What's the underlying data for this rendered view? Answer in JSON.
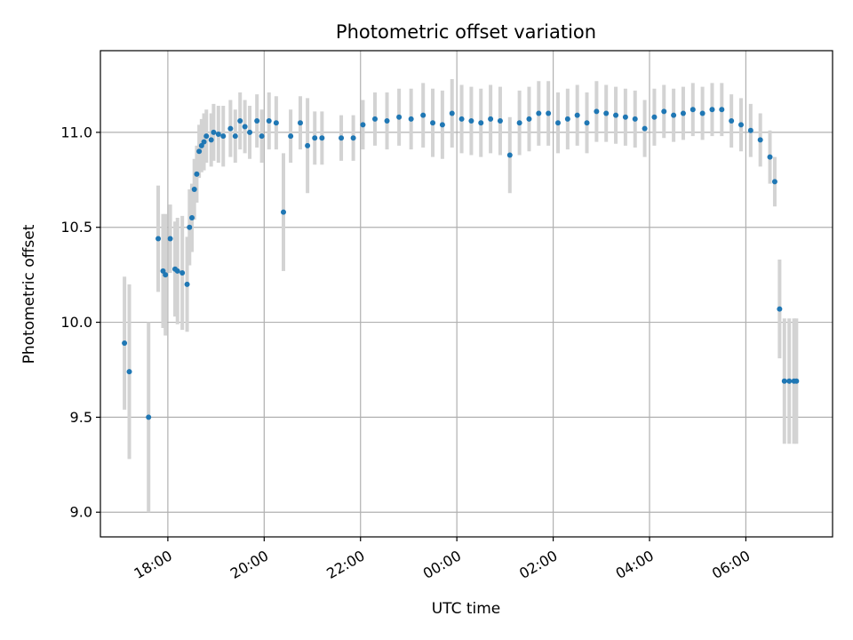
{
  "chart_data": {
    "type": "scatter",
    "title": "Photometric offset variation",
    "xlabel": "UTC time",
    "ylabel": "Photometric offset",
    "grid": true,
    "xlim_hours": [
      16.6,
      31.8
    ],
    "ylim": [
      8.87,
      11.43
    ],
    "x_ticks": [
      {
        "value": 18,
        "label": "18:00"
      },
      {
        "value": 20,
        "label": "20:00"
      },
      {
        "value": 22,
        "label": "22:00"
      },
      {
        "value": 24,
        "label": "00:00"
      },
      {
        "value": 26,
        "label": "02:00"
      },
      {
        "value": 28,
        "label": "04:00"
      },
      {
        "value": 30,
        "label": "06:00"
      }
    ],
    "y_ticks": [
      {
        "value": 9.0,
        "label": "9.0"
      },
      {
        "value": 9.5,
        "label": "9.5"
      },
      {
        "value": 10.0,
        "label": "10.0"
      },
      {
        "value": 10.5,
        "label": "10.5"
      },
      {
        "value": 11.0,
        "label": "11.0"
      }
    ],
    "marker_color": "#1f77b4",
    "errorbar_color": "#d3d3d3",
    "series": [
      {
        "name": "Photometric offset",
        "x": [
          17.1,
          17.2,
          17.6,
          17.8,
          17.9,
          17.95,
          18.05,
          18.15,
          18.2,
          18.3,
          18.4,
          18.45,
          18.5,
          18.55,
          18.6,
          18.65,
          18.7,
          18.75,
          18.8,
          18.9,
          18.95,
          19.05,
          19.15,
          19.3,
          19.4,
          19.5,
          19.6,
          19.7,
          19.85,
          19.95,
          20.1,
          20.25,
          20.4,
          20.55,
          20.75,
          20.9,
          21.05,
          21.2,
          21.6,
          21.85,
          22.05,
          22.3,
          22.55,
          22.8,
          23.05,
          23.3,
          23.5,
          23.7,
          23.9,
          24.1,
          24.3,
          24.5,
          24.7,
          24.9,
          25.1,
          25.3,
          25.5,
          25.7,
          25.9,
          26.1,
          26.3,
          26.5,
          26.7,
          26.9,
          27.1,
          27.3,
          27.5,
          27.7,
          27.9,
          28.1,
          28.3,
          28.5,
          28.7,
          28.9,
          29.1,
          29.3,
          29.5,
          29.7,
          29.9,
          30.1,
          30.3,
          30.5,
          30.6,
          30.7,
          30.8,
          30.9,
          31.0,
          31.05
        ],
        "y": [
          9.89,
          9.74,
          9.5,
          10.44,
          10.27,
          10.25,
          10.44,
          10.28,
          10.27,
          10.26,
          10.2,
          10.5,
          10.55,
          10.7,
          10.78,
          10.9,
          10.93,
          10.95,
          10.98,
          10.96,
          11.0,
          10.99,
          10.98,
          11.02,
          10.98,
          11.06,
          11.03,
          11.0,
          11.06,
          10.98,
          11.06,
          11.05,
          10.58,
          10.98,
          11.05,
          10.93,
          10.97,
          10.97,
          10.97,
          10.97,
          11.04,
          11.07,
          11.06,
          11.08,
          11.07,
          11.09,
          11.05,
          11.04,
          11.1,
          11.07,
          11.06,
          11.05,
          11.07,
          11.06,
          10.88,
          11.05,
          11.07,
          11.1,
          11.1,
          11.05,
          11.07,
          11.09,
          11.05,
          11.11,
          11.1,
          11.09,
          11.08,
          11.07,
          11.02,
          11.08,
          11.11,
          11.09,
          11.1,
          11.12,
          11.1,
          11.12,
          11.12,
          11.06,
          11.04,
          11.01,
          10.96,
          10.87,
          10.74,
          10.07,
          9.69,
          9.69,
          9.69,
          9.69
        ],
        "err": [
          0.35,
          0.46,
          0.5,
          0.28,
          0.3,
          0.32,
          0.18,
          0.25,
          0.28,
          0.3,
          0.25,
          0.2,
          0.18,
          0.16,
          0.15,
          0.14,
          0.14,
          0.15,
          0.14,
          0.14,
          0.15,
          0.15,
          0.16,
          0.15,
          0.14,
          0.15,
          0.14,
          0.14,
          0.14,
          0.14,
          0.15,
          0.14,
          0.31,
          0.14,
          0.14,
          0.25,
          0.14,
          0.14,
          0.12,
          0.12,
          0.13,
          0.14,
          0.15,
          0.15,
          0.16,
          0.17,
          0.18,
          0.18,
          0.18,
          0.18,
          0.18,
          0.18,
          0.18,
          0.18,
          0.2,
          0.17,
          0.17,
          0.17,
          0.17,
          0.16,
          0.16,
          0.16,
          0.16,
          0.16,
          0.15,
          0.15,
          0.15,
          0.15,
          0.15,
          0.15,
          0.14,
          0.14,
          0.14,
          0.14,
          0.14,
          0.14,
          0.14,
          0.14,
          0.14,
          0.14,
          0.14,
          0.14,
          0.13,
          0.26,
          0.33,
          0.33,
          0.33,
          0.33
        ]
      }
    ]
  }
}
